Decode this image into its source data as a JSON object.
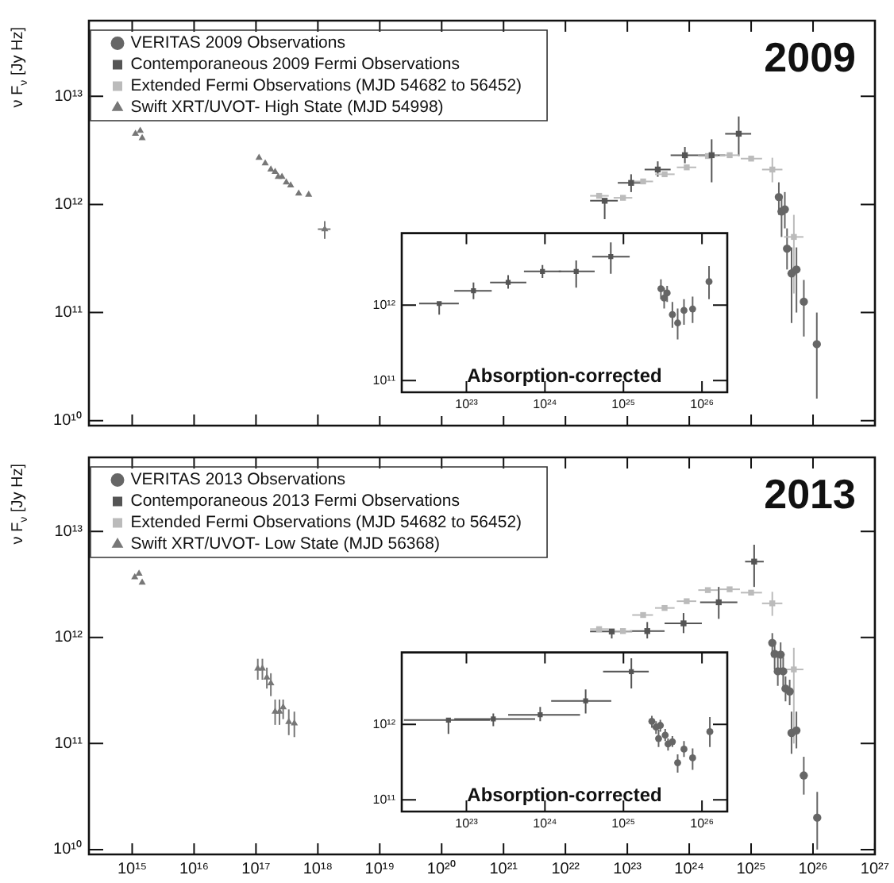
{
  "chart_data": [
    {
      "type": "scatter",
      "log": "xy",
      "ylabel": "ν F$_{ν}$ [Jy Hz]",
      "annotations": [
        "2009"
      ],
      "legend": "top left",
      "tick_labels": "y",
      "xlim": [
        200000000000000.0,
        1e+27
      ],
      "xticks": [
        {
          "value": 1000000000000000.0,
          "label": null
        },
        {
          "value": 1e+16,
          "label": null
        },
        {
          "value": 1e+17,
          "label": null
        },
        {
          "value": 1e+18,
          "label": null
        },
        {
          "value": 1e+19,
          "label": null
        },
        {
          "value": 1e+20,
          "label": null
        },
        {
          "value": 1e+21,
          "label": null
        },
        {
          "value": 1e+22,
          "label": null
        },
        {
          "value": 1e+23,
          "label": null
        },
        {
          "value": 1e+24,
          "label": null
        },
        {
          "value": 1e+25,
          "label": null
        },
        {
          "value": 1e+26,
          "label": null
        },
        {
          "value": 1e+27,
          "label": null
        }
      ],
      "ylim": [
        9000000000.0,
        50000000000000.0
      ],
      "yticks": [
        {
          "value": 10000000000.0,
          "label": "10¹⁰"
        },
        {
          "value": 100000000000.0,
          "label": "10¹¹"
        },
        {
          "value": 1000000000000.0,
          "label": "10¹²"
        },
        {
          "value": 10000000000000.0,
          "label": "10¹³"
        }
      ],
      "series": [
        {
          "name": "VERITAS 2009 Observations",
          "color": "#666666",
          "marker": "circle",
          "x": [
            2.8e+25,
            3.1e+25,
            3.5e+25,
            3.8e+25,
            4.5e+25,
            5.4e+25,
            7.1e+25,
            1.15e+26
          ],
          "values": [
            1170000000000.0,
            860000000000.0,
            900000000000.0,
            390000000000.0,
            230000000000.0,
            250000000000.0,
            126000000000.0,
            51000000000.0
          ],
          "errors": [
            [
              800000000000.0,
              1600000000000.0
            ],
            [
              500000000000.0,
              1200000000000.0
            ],
            [
              600000000000.0,
              1300000000000.0
            ],
            [
              250000000000.0,
              600000000000.0
            ],
            [
              80000000000.0,
              400000000000.0
            ],
            [
              100000000000.0,
              400000000000.0
            ],
            [
              60000000000.0,
              200000000000.0
            ],
            [
              16000000000.0,
              100000000000.0
            ]
          ]
        },
        {
          "name": "Contemporaneous 2009 Fermi Observations",
          "color": "#555555",
          "marker": "square",
          "x": [
            4.3e+22,
            1.15e+23,
            3.1e+23,
            8.5e+23,
            2.3e+24,
            6.3e+24
          ],
          "values": [
            1080000000000.0,
            1580000000000.0,
            2100000000000.0,
            2850000000000.0,
            2850000000000.0,
            4500000000000.0
          ],
          "xerrors": [
            [
              2.5e+22,
              7e+22
            ],
            [
              7e+22,
              1.9e+23
            ],
            [
              1.9e+23,
              5e+23
            ],
            [
              5e+23,
              1.4e+24
            ],
            [
              1.4e+24,
              3.8e+24
            ],
            [
              3.8e+24,
              1e+25
            ]
          ],
          "errors": [
            [
              720000000000.0,
              1080000000000.0
            ],
            [
              1300000000000.0,
              1900000000000.0
            ],
            [
              1800000000000.0,
              2500000000000.0
            ],
            [
              2400000000000.0,
              3400000000000.0
            ],
            [
              1600000000000.0,
              4000000000000.0
            ],
            [
              2800000000000.0,
              6500000000000.0
            ]
          ]
        },
        {
          "name": "Extended Fermi Observations (MJD 54682 to 56452)",
          "color": "#bbbbbb",
          "marker": "square",
          "x": [
            3.5e+22,
            8.5e+22,
            1.8e+23,
            4e+23,
            9.1e+23,
            2e+24,
            4.5e+24,
            1e+25,
            2.2e+25,
            4.9e+25
          ],
          "values": [
            1200000000000.0,
            1150000000000.0,
            1630000000000.0,
            1900000000000.0,
            2200000000000.0,
            2800000000000.0,
            2850000000000.0,
            2650000000000.0,
            2100000000000.0,
            500000000000.0
          ],
          "xerrors": [
            [
              2.5e+22,
              5e+22
            ],
            [
              6e+22,
              1.2e+23
            ],
            [
              1.2e+23,
              2.6e+23
            ],
            [
              2.8e+23,
              5.8e+23
            ],
            [
              6.3e+23,
              1.3e+24
            ],
            [
              1.4e+24,
              2.9e+24
            ],
            [
              3.1e+24,
              6.6e+24
            ],
            [
              6.8e+24,
              1.5e+25
            ],
            [
              1.5e+25,
              3.2e+25
            ],
            [
              3.4e+25,
              7e+25
            ]
          ],
          "errors": [
            null,
            null,
            null,
            null,
            null,
            null,
            null,
            null,
            [
              1600000000000.0,
              2700000000000.0
            ],
            [
              150000000000.0,
              800000000000.0
            ]
          ]
        },
        {
          "name": "Swift XRT/UVOT- High State (MJD 54998)",
          "color": "#777777",
          "marker": "triangle",
          "x": [
            1130000000000000.0,
            1350000000000000.0,
            1450000000000000.0,
            1.12e+17,
            1.41e+17,
            1.74e+17,
            2.04e+17,
            2.29e+17,
            2.63e+17,
            3.09e+17,
            3.63e+17,
            4.9e+17,
            7.1e+17,
            1.29e+18
          ],
          "values": [
            4500000000000.0,
            4800000000000.0,
            4100000000000.0,
            2700000000000.0,
            2400000000000.0,
            2100000000000.0,
            2000000000000.0,
            1800000000000.0,
            1800000000000.0,
            1600000000000.0,
            1500000000000.0,
            1260000000000.0,
            1230000000000.0,
            590000000000.0
          ],
          "xerrors": [
            null,
            null,
            null,
            null,
            null,
            null,
            null,
            null,
            null,
            null,
            null,
            null,
            null,
            [
              1e+18,
              1.6e+18
            ]
          ],
          "errors": [
            null,
            null,
            null,
            null,
            null,
            null,
            null,
            null,
            null,
            null,
            null,
            null,
            null,
            [
              480000000000.0,
              700000000000.0
            ]
          ]
        }
      ]
    },
    {
      "type": "scatter",
      "log": "xy",
      "title": "Absorption-corrected",
      "xlim": [
        1.5e+22,
        2.1e+26
      ],
      "xticks": [
        {
          "value": 1e+23,
          "label": "10²³"
        },
        {
          "value": 1e+24,
          "label": "10²⁴"
        },
        {
          "value": 1e+25,
          "label": "10²⁵"
        },
        {
          "value": 1e+26,
          "label": "10²⁶"
        }
      ],
      "ylim": [
        70000000000.0,
        9000000000000.0
      ],
      "yticks": [
        {
          "value": 100000000000.0,
          "label": "10¹¹"
        },
        {
          "value": 1000000000000.0,
          "label": "10¹²"
        }
      ],
      "series": [
        {
          "color": "#555555",
          "marker": "square",
          "x": [
            4.5e+22,
            1.23e+23,
            3.4e+23,
            9.3e+23,
            2.5e+24,
            6.9e+24
          ],
          "values": [
            1050000000000.0,
            1550000000000.0,
            2000000000000.0,
            2800000000000.0,
            2800000000000.0,
            4400000000000.0
          ],
          "xerrors": [
            [
              2.5e+22,
              8e+22
            ],
            [
              7e+22,
              2.1e+23
            ],
            [
              2e+23,
              5.8e+23
            ],
            [
              5.4e+23,
              1.6e+24
            ],
            [
              1.5e+24,
              4.3e+24
            ],
            [
              4e+24,
              1.2e+25
            ]
          ],
          "errors": [
            [
              750000000000.0,
              1050000000000.0
            ],
            [
              1200000000000.0,
              2000000000000.0
            ],
            [
              1650000000000.0,
              2500000000000.0
            ],
            [
              2300000000000.0,
              3400000000000.0
            ],
            [
              1700000000000.0,
              3900000000000.0
            ],
            [
              2600000000000.0,
              6800000000000.0
            ]
          ]
        },
        {
          "color": "#666666",
          "marker": "circle",
          "x": [
            3e+25,
            3.3e+25,
            3.6e+25,
            4.2e+25,
            4.9e+25,
            5.9e+25,
            7.6e+25,
            1.23e+26
          ],
          "values": [
            1650000000000.0,
            1240000000000.0,
            1450000000000.0,
            750000000000.0,
            580000000000.0,
            850000000000.0,
            890000000000.0,
            2050000000000.0
          ],
          "errors": [
            [
              1200000000000.0,
              2200000000000.0
            ],
            [
              900000000000.0,
              1700000000000.0
            ],
            [
              1100000000000.0,
              1800000000000.0
            ],
            [
              500000000000.0,
              1100000000000.0
            ],
            [
              350000000000.0,
              900000000000.0
            ],
            [
              550000000000.0,
              1200000000000.0
            ],
            [
              580000000000.0,
              1300000000000.0
            ],
            [
              1200000000000.0,
              3300000000000.0
            ]
          ]
        }
      ]
    },
    {
      "type": "scatter",
      "log": "xy",
      "ylabel": "ν F$_{ν}$ [Jy Hz]",
      "annotations": [
        "2013"
      ],
      "legend": "top left",
      "xlim": [
        200000000000000.0,
        1e+27
      ],
      "xticks": [
        {
          "value": 1000000000000000.0,
          "label": "10¹⁵"
        },
        {
          "value": 1e+16,
          "label": "10¹⁶"
        },
        {
          "value": 1e+17,
          "label": "10¹⁷"
        },
        {
          "value": 1e+18,
          "label": "10¹⁸"
        },
        {
          "value": 1e+19,
          "label": "10¹⁹"
        },
        {
          "value": 1e+20,
          "label": "10²⁰"
        },
        {
          "value": 1e+21,
          "label": "10²¹"
        },
        {
          "value": 1e+22,
          "label": "10²²"
        },
        {
          "value": 1e+23,
          "label": "10²³"
        },
        {
          "value": 1e+24,
          "label": "10²⁴"
        },
        {
          "value": 1e+25,
          "label": "10²⁵"
        },
        {
          "value": 1e+26,
          "label": "10²⁶"
        },
        {
          "value": 1e+27,
          "label": "10²⁷"
        }
      ],
      "ylim": [
        9000000000.0,
        50000000000000.0
      ],
      "yticks": [
        {
          "value": 10000000000.0,
          "label": "10¹⁰"
        },
        {
          "value": 100000000000.0,
          "label": "10¹¹"
        },
        {
          "value": 1000000000000.0,
          "label": "10¹²"
        },
        {
          "value": 10000000000000.0,
          "label": "10¹³"
        }
      ],
      "series": [
        {
          "name": "VERITAS 2013 Observations",
          "color": "#666666",
          "marker": "circle",
          "x": [
            2.2e+25,
            2.4e+25,
            3e+25,
            2.7e+25,
            3.3e+25,
            3.6e+25,
            4.2e+25,
            4.5e+25,
            5.4e+25,
            7.1e+25,
            1.17e+26
          ],
          "values": [
            890000000000.0,
            700000000000.0,
            690000000000.0,
            480000000000.0,
            480000000000.0,
            330000000000.0,
            310000000000.0,
            126000000000.0,
            133000000000.0,
            50000000000.0,
            20000000000.0
          ],
          "errors": [
            [
              650000000000.0,
              1100000000000.0
            ],
            [
              500000000000.0,
              900000000000.0
            ],
            [
              500000000000.0,
              900000000000.0
            ],
            [
              350000000000.0,
              700000000000.0
            ],
            [
              350000000000.0,
              650000000000.0
            ],
            [
              250000000000.0,
              430000000000.0
            ],
            [
              230000000000.0,
              400000000000.0
            ],
            [
              80000000000.0,
              200000000000.0
            ],
            [
              90000000000.0,
              200000000000.0
            ],
            [
              33000000000.0,
              75000000000.0
            ],
            [
              10000000000.0,
              35000000000.0
            ]
          ]
        },
        {
          "name": "Contemporaneous 2013 Fermi Observations",
          "color": "#555555",
          "marker": "square",
          "x": [
            5.6e+22,
            2.1e+23,
            8.1e+23,
            3e+24,
            1.12e+25
          ],
          "values": [
            1140000000000.0,
            1150000000000.0,
            1360000000000.0,
            2150000000000.0,
            5200000000000.0
          ],
          "xerrors": [
            [
              2.5e+22,
              1.2e+23
            ],
            [
              1.1e+23,
              4e+23
            ],
            [
              4e+23,
              1.6e+24
            ],
            [
              1.5e+24,
              6e+24
            ],
            [
              8e+24,
              1.6e+25
            ]
          ],
          "errors": [
            [
              750000000000.0,
              1140000000000.0
            ],
            [
              950000000000.0,
              1400000000000.0
            ],
            [
              1100000000000.0,
              1700000000000.0
            ],
            [
              1500000000000.0,
              3000000000000.0
            ],
            [
              3000000000000.0,
              7500000000000.0
            ]
          ]
        },
        {
          "name": "Extended Fermi Observations (MJD 54682 to 56452)",
          "color": "#bbbbbb",
          "marker": "square",
          "x": [
            3.5e+22,
            8.5e+22,
            1.8e+23,
            4e+23,
            9.1e+23,
            2e+24,
            4.5e+24,
            1e+25,
            2.2e+25,
            4.9e+25
          ],
          "values": [
            1200000000000.0,
            1150000000000.0,
            1630000000000.0,
            1900000000000.0,
            2200000000000.0,
            2800000000000.0,
            2850000000000.0,
            2650000000000.0,
            2100000000000.0,
            500000000000.0
          ],
          "xerrors": [
            [
              2.5e+22,
              5e+22
            ],
            [
              6e+22,
              1.2e+23
            ],
            [
              1.2e+23,
              2.6e+23
            ],
            [
              2.8e+23,
              5.8e+23
            ],
            [
              6.3e+23,
              1.3e+24
            ],
            [
              1.4e+24,
              2.9e+24
            ],
            [
              3.1e+24,
              6.6e+24
            ],
            [
              6.8e+24,
              1.5e+25
            ],
            [
              1.5e+25,
              3.2e+25
            ],
            [
              3.4e+25,
              7e+25
            ]
          ],
          "errors": [
            null,
            null,
            null,
            null,
            null,
            null,
            null,
            null,
            [
              1600000000000.0,
              2700000000000.0
            ],
            [
              100000000000.0,
              800000000000.0
            ]
          ]
        },
        {
          "name": "Swift XRT/UVOT- Low State (MJD 56368)",
          "color": "#777777",
          "marker": "triangle",
          "x": [
            1100000000000000.0,
            1290000000000000.0,
            1450000000000000.0,
            1.07e+17,
            1.27e+17,
            1.5e+17,
            1.74e+17,
            2.04e+17,
            2.4e+17,
            2.75e+17,
            3.39e+17,
            4.17e+17
          ],
          "values": [
            3700000000000.0,
            4000000000000.0,
            3300000000000.0,
            510000000000.0,
            510000000000.0,
            420000000000.0,
            370000000000.0,
            200000000000.0,
            200000000000.0,
            220000000000.0,
            160000000000.0,
            155000000000.0
          ],
          "errors": [
            null,
            null,
            null,
            [
              400000000000.0,
              630000000000.0
            ],
            [
              400000000000.0,
              630000000000.0
            ],
            [
              330000000000.0,
              520000000000.0
            ],
            [
              280000000000.0,
              460000000000.0
            ],
            [
              150000000000.0,
              260000000000.0
            ],
            [
              150000000000.0,
              260000000000.0
            ],
            [
              170000000000.0,
              260000000000.0
            ],
            [
              120000000000.0,
              210000000000.0
            ],
            [
              115000000000.0,
              200000000000.0
            ]
          ]
        }
      ]
    },
    {
      "type": "scatter",
      "log": "xy",
      "title": "Absorption-corrected",
      "xlim": [
        1.5e+22,
        2.1e+26
      ],
      "xticks": [
        {
          "value": 1e+23,
          "label": "10²³"
        },
        {
          "value": 1e+24,
          "label": "10²⁴"
        },
        {
          "value": 1e+25,
          "label": "10²⁵"
        },
        {
          "value": 1e+26,
          "label": "10²⁶"
        }
      ],
      "ylim": [
        70000000000.0,
        9000000000000.0
      ],
      "yticks": [
        {
          "value": 100000000000.0,
          "label": "10¹¹"
        },
        {
          "value": 1000000000000.0,
          "label": "10¹²"
        }
      ],
      "series": [
        {
          "color": "#555555",
          "marker": "square",
          "x": [
            5.9e+22,
            2.2e+23,
            8.7e+23,
            3.3e+24,
            1.26e+25
          ],
          "values": [
            1140000000000.0,
            1180000000000.0,
            1340000000000.0,
            2050000000000.0,
            5000000000000.0
          ],
          "xerrors": [
            [
              1.6e+22,
              2e+23
            ],
            [
              7e+22,
              7.5e+23
            ],
            [
              3.4e+23,
              2.8e+24
            ],
            [
              1.2e+24,
              7e+24
            ],
            [
              5.5e+24,
              2.1e+25
            ]
          ],
          "errors": [
            [
              750000000000.0,
              1140000000000.0
            ],
            [
              950000000000.0,
              1400000000000.0
            ],
            [
              1100000000000.0,
              1700000000000.0
            ],
            [
              1400000000000.0,
              2900000000000.0
            ],
            [
              3000000000000.0,
              7500000000000.0
            ]
          ]
        },
        {
          "color": "#666666",
          "marker": "circle",
          "x": [
            2.3e+25,
            2.6e+25,
            2.95e+25,
            2.8e+25,
            3.4e+25,
            3.7e+25,
            4.2e+25,
            4.9e+25,
            5.9e+25,
            7.6e+25,
            1.26e+26
          ],
          "values": [
            1100000000000.0,
            920000000000.0,
            970000000000.0,
            650000000000.0,
            720000000000.0,
            550000000000.0,
            590000000000.0,
            310000000000.0,
            470000000000.0,
            360000000000.0,
            800000000000.0
          ],
          "errors": [
            [
              900000000000.0,
              1300000000000.0
            ],
            [
              750000000000.0,
              1100000000000.0
            ],
            [
              800000000000.0,
              1150000000000.0
            ],
            [
              500000000000.0,
              850000000000.0
            ],
            [
              600000000000.0,
              870000000000.0
            ],
            [
              450000000000.0,
              650000000000.0
            ],
            [
              500000000000.0,
              700000000000.0
            ],
            [
              230000000000.0,
              400000000000.0
            ],
            [
              370000000000.0,
              600000000000.0
            ],
            [
              250000000000.0,
              480000000000.0
            ],
            [
              500000000000.0,
              1250000000000.0
            ]
          ]
        }
      ]
    }
  ]
}
